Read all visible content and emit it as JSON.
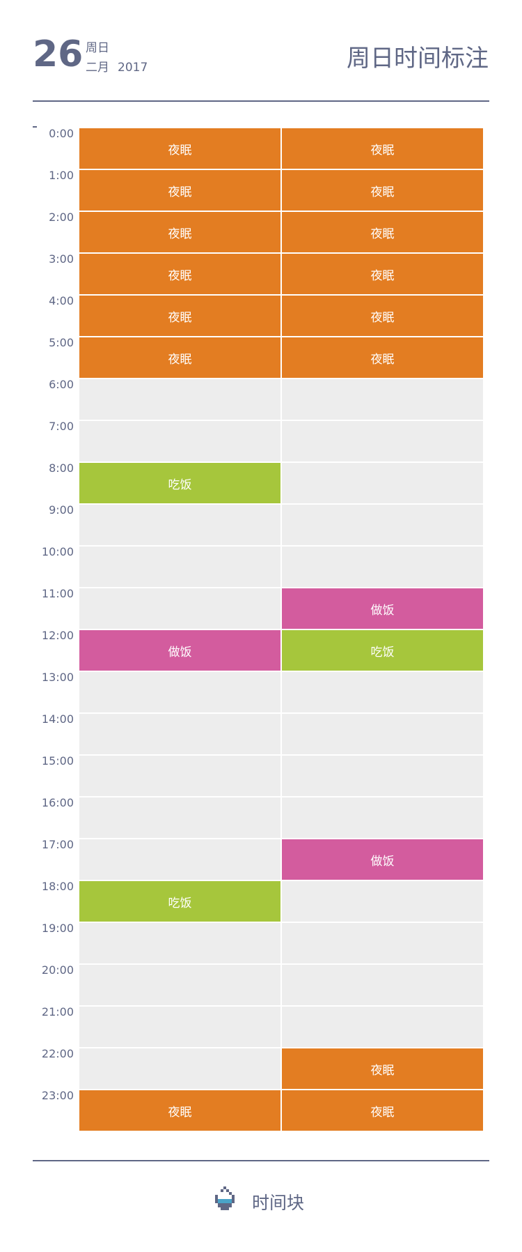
{
  "header": {
    "day": "26",
    "weekday": "周日",
    "month": "二月",
    "year": "2017",
    "title": "周日时间标注"
  },
  "colors": {
    "夜眠": "#e37d22",
    "吃饭": "#a6c63c",
    "做饭": "#d35c9e",
    "empty": "#ededed",
    "text": "#5f6785"
  },
  "hours": [
    "0:00",
    "1:00",
    "2:00",
    "3:00",
    "4:00",
    "5:00",
    "6:00",
    "7:00",
    "8:00",
    "9:00",
    "10:00",
    "11:00",
    "12:00",
    "13:00",
    "14:00",
    "15:00",
    "16:00",
    "17:00",
    "18:00",
    "19:00",
    "20:00",
    "21:00",
    "22:00",
    "23:00"
  ],
  "columns": [
    [
      "夜眠",
      "夜眠",
      "夜眠",
      "夜眠",
      "夜眠",
      "夜眠",
      "",
      "",
      "吃饭",
      "",
      "",
      "",
      "做饭",
      "",
      "",
      "",
      "",
      "",
      "吃饭",
      "",
      "",
      "",
      "",
      "夜眠"
    ],
    [
      "夜眠",
      "夜眠",
      "夜眠",
      "夜眠",
      "夜眠",
      "夜眠",
      "",
      "",
      "",
      "",
      "",
      "做饭",
      "吃饭",
      "",
      "",
      "",
      "",
      "做饭",
      "",
      "",
      "",
      "",
      "夜眠",
      "夜眠"
    ]
  ],
  "footer": {
    "app_name": "时间块",
    "icon": "hourglass-cup-icon"
  }
}
